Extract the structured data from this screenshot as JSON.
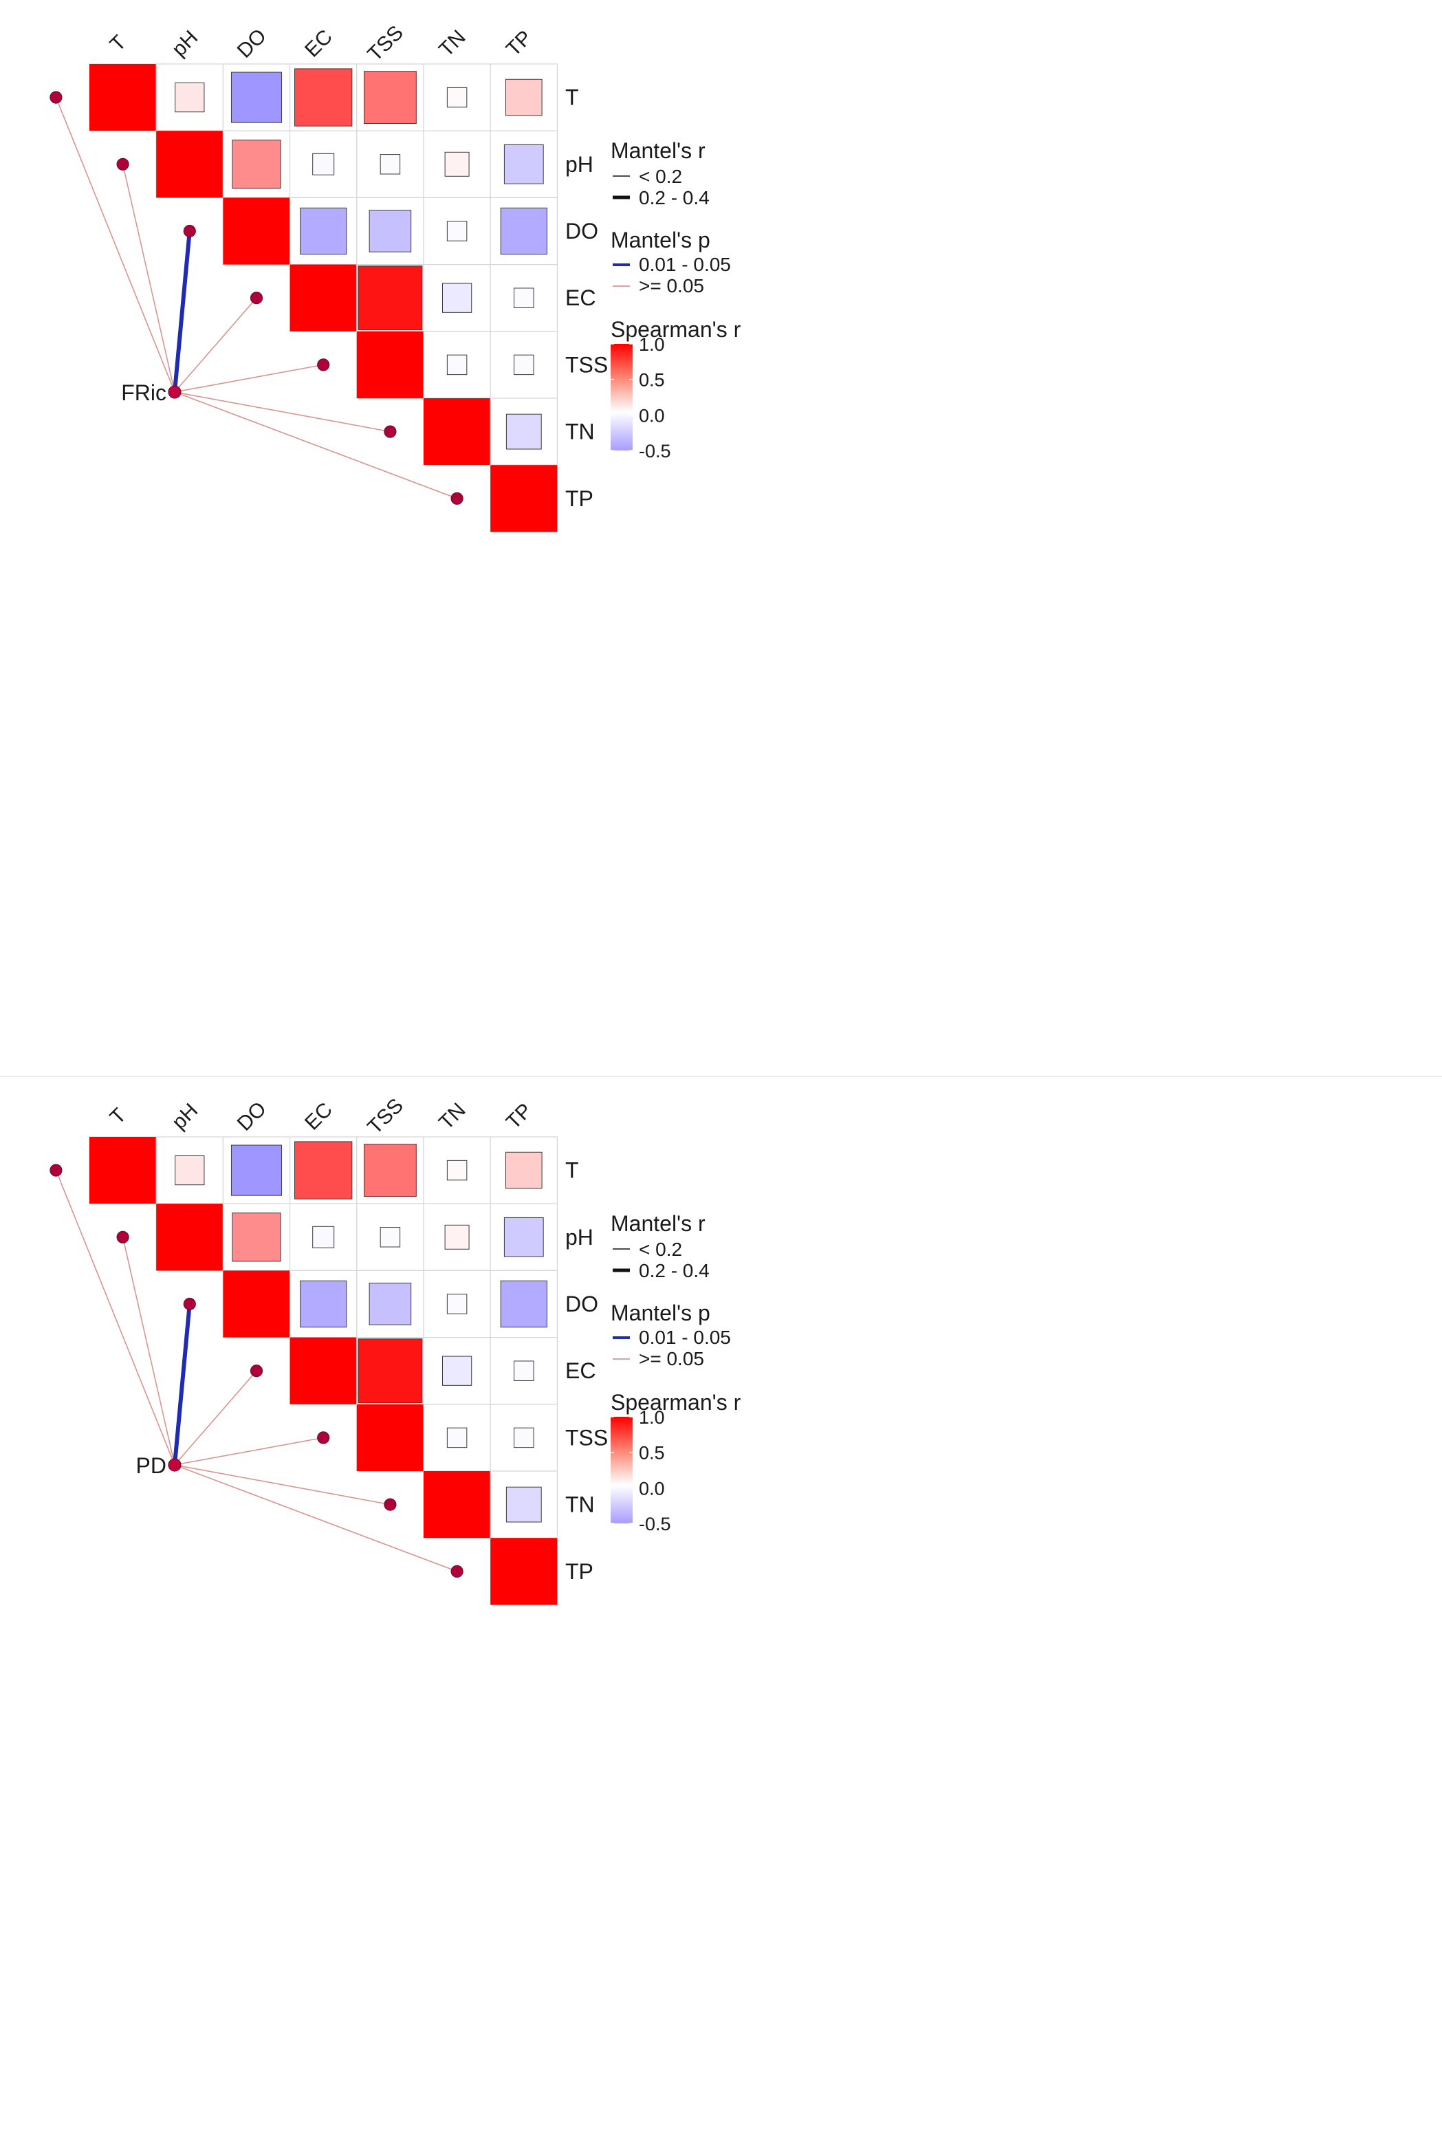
{
  "chart_data": [
    {
      "type": "heatmap",
      "subtype": "mantel-correlation",
      "title": "",
      "variables": [
        "T",
        "pH",
        "DO",
        "EC",
        "TSS",
        "TN",
        "TP"
      ],
      "spearman_r": [
        [
          1.0,
          0.1,
          -0.5,
          0.7,
          0.55,
          0.02,
          0.2
        ],
        [
          0.1,
          1.0,
          0.45,
          -0.03,
          -0.02,
          0.05,
          -0.25
        ],
        [
          -0.5,
          0.45,
          1.0,
          -0.4,
          -0.3,
          -0.02,
          -0.4
        ],
        [
          0.7,
          -0.03,
          -0.4,
          1.0,
          0.92,
          -0.1,
          -0.02
        ],
        [
          0.55,
          -0.02,
          -0.3,
          0.92,
          1.0,
          -0.02,
          -0.02
        ],
        [
          0.02,
          0.05,
          -0.02,
          -0.1,
          -0.02,
          1.0,
          -0.18
        ],
        [
          0.2,
          -0.25,
          -0.4,
          -0.02,
          -0.02,
          -0.18,
          1.0
        ]
      ],
      "mantel": {
        "node": "FRic",
        "links": [
          {
            "to": "T",
            "r_class": "< 0.2",
            "p_class": ">= 0.05"
          },
          {
            "to": "pH",
            "r_class": "< 0.2",
            "p_class": ">= 0.05"
          },
          {
            "to": "DO",
            "r_class": "0.2 - 0.4",
            "p_class": "0.01 - 0.05"
          },
          {
            "to": "EC",
            "r_class": "< 0.2",
            "p_class": ">= 0.05"
          },
          {
            "to": "TSS",
            "r_class": "< 0.2",
            "p_class": ">= 0.05"
          },
          {
            "to": "TN",
            "r_class": "< 0.2",
            "p_class": ">= 0.05"
          },
          {
            "to": "TP",
            "r_class": "< 0.2",
            "p_class": ">= 0.05"
          }
        ]
      },
      "legend": {
        "mantel_r_title": "Mantel's r",
        "mantel_r_items": [
          "< 0.2",
          "0.2 - 0.4"
        ],
        "mantel_p_title": "Mantel's p",
        "mantel_p_items": [
          "0.01 - 0.05",
          ">= 0.05"
        ],
        "mantel_p_colors": [
          "#1f2bb0",
          "#d9958f"
        ],
        "spearman_title": "Spearman's r",
        "colorbar_ticks": [
          "1.0",
          "0.5",
          "0.0",
          "-0.5"
        ],
        "colorbar_range": [
          -0.5,
          1.0
        ]
      },
      "legend_position": "right"
    },
    {
      "type": "heatmap",
      "subtype": "mantel-correlation",
      "title": "",
      "variables": [
        "T",
        "pH",
        "DO",
        "EC",
        "TSS",
        "TN",
        "TP"
      ],
      "spearman_r": [
        [
          1.0,
          0.1,
          -0.5,
          0.7,
          0.55,
          0.02,
          0.2
        ],
        [
          0.1,
          1.0,
          0.45,
          -0.03,
          -0.02,
          0.05,
          -0.25
        ],
        [
          -0.5,
          0.45,
          1.0,
          -0.4,
          -0.3,
          -0.02,
          -0.4
        ],
        [
          0.7,
          -0.03,
          -0.4,
          1.0,
          0.92,
          -0.1,
          -0.02
        ],
        [
          0.55,
          -0.02,
          -0.3,
          0.92,
          1.0,
          -0.02,
          -0.02
        ],
        [
          0.02,
          0.05,
          -0.02,
          -0.1,
          -0.02,
          1.0,
          -0.18
        ],
        [
          0.2,
          -0.25,
          -0.4,
          -0.02,
          -0.02,
          -0.18,
          1.0
        ]
      ],
      "mantel": {
        "node": "PD",
        "links": [
          {
            "to": "T",
            "r_class": "< 0.2",
            "p_class": ">= 0.05"
          },
          {
            "to": "pH",
            "r_class": "< 0.2",
            "p_class": ">= 0.05"
          },
          {
            "to": "DO",
            "r_class": "0.2 - 0.4",
            "p_class": "0.01 - 0.05"
          },
          {
            "to": "EC",
            "r_class": "< 0.2",
            "p_class": ">= 0.05"
          },
          {
            "to": "TSS",
            "r_class": "< 0.2",
            "p_class": ">= 0.05"
          },
          {
            "to": "TN",
            "r_class": "< 0.2",
            "p_class": ">= 0.05"
          },
          {
            "to": "TP",
            "r_class": "< 0.2",
            "p_class": ">= 0.05"
          }
        ]
      },
      "legend": {
        "mantel_r_title": "Mantel's r",
        "mantel_r_items": [
          "< 0.2",
          "0.2 - 0.4"
        ],
        "mantel_p_title": "Mantel's p",
        "mantel_p_items": [
          "0.01 - 0.05",
          ">= 0.05"
        ],
        "mantel_p_colors": [
          "#1f2bb0",
          "#d9958f"
        ],
        "spearman_title": "Spearman's r",
        "colorbar_ticks": [
          "1.0",
          "0.5",
          "0.0",
          "-0.5"
        ],
        "colorbar_range": [
          -0.5,
          1.0
        ]
      },
      "legend_position": "right"
    }
  ]
}
